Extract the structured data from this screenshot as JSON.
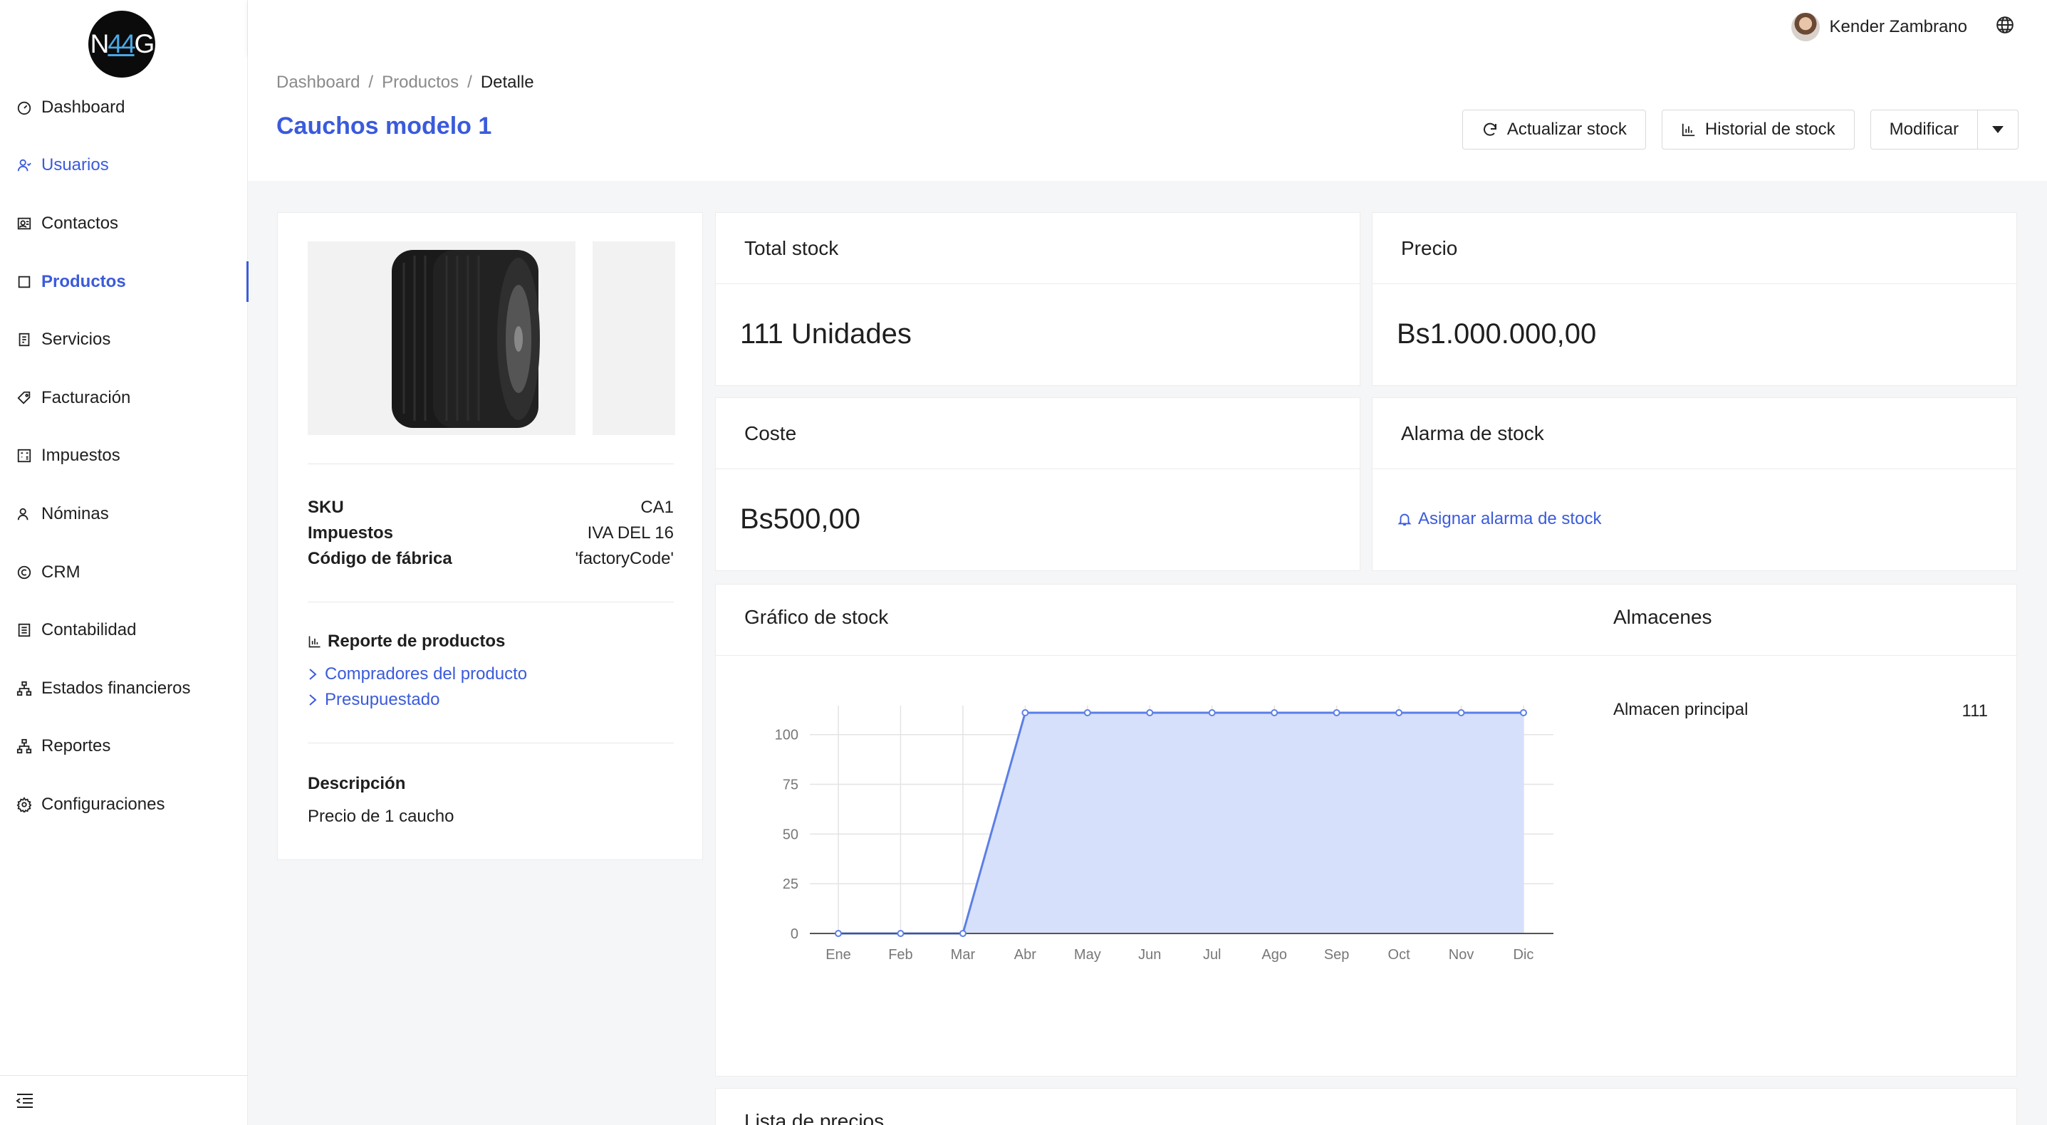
{
  "logo": {
    "left": "N",
    "mid": "44",
    "right": "G"
  },
  "sidebar": {
    "items": [
      {
        "label": "Dashboard",
        "icon": "dashboard-icon"
      },
      {
        "label": "Usuarios",
        "icon": "users-icon"
      },
      {
        "label": "Contactos",
        "icon": "contacts-icon"
      },
      {
        "label": "Productos",
        "icon": "box-icon"
      },
      {
        "label": "Servicios",
        "icon": "services-icon"
      },
      {
        "label": "Facturación",
        "icon": "tag-icon"
      },
      {
        "label": "Impuestos",
        "icon": "calculator-icon"
      },
      {
        "label": "Nóminas",
        "icon": "payroll-icon"
      },
      {
        "label": "CRM",
        "icon": "copyright-icon"
      },
      {
        "label": "Contabilidad",
        "icon": "ledger-icon"
      },
      {
        "label": "Estados financieros",
        "icon": "hierarchy-icon"
      },
      {
        "label": "Reportes",
        "icon": "reports-icon"
      },
      {
        "label": "Configuraciones",
        "icon": "gear-icon"
      }
    ],
    "active": "Productos"
  },
  "header": {
    "user_name": "Kender Zambrano"
  },
  "breadcrumb": {
    "items": [
      "Dashboard",
      "Productos"
    ],
    "current": "Detalle"
  },
  "page": {
    "title": "Cauchos modelo 1"
  },
  "actions": {
    "update_stock": "Actualizar stock",
    "stock_history": "Historial de stock",
    "modify": "Modificar"
  },
  "product": {
    "specs": [
      {
        "key": "SKU",
        "value": "CA1"
      },
      {
        "key": "Impuestos",
        "value": "IVA DEL 16"
      },
      {
        "key": "Código de fábrica",
        "value": "'factoryCode'"
      }
    ],
    "report_title": "Reporte de productos",
    "report_links": [
      "Compradores del producto",
      "Presupuestado"
    ],
    "description_title": "Descripción",
    "description": "Precio de 1 caucho"
  },
  "cards": {
    "total_stock": {
      "title": "Total stock",
      "value": "111 Unidades"
    },
    "price": {
      "title": "Precio",
      "value": "Bs1.000.000,00"
    },
    "cost": {
      "title": "Coste",
      "value": "Bs500,00"
    },
    "alarm": {
      "title": "Alarma de stock",
      "link": "Asignar alarma de stock"
    }
  },
  "stock_chart": {
    "title": "Gráfico de stock",
    "warehouses_title": "Almacenes",
    "warehouses": [
      {
        "name": "Almacen principal",
        "qty": "111"
      }
    ]
  },
  "price_list": {
    "title": "Lista de precios"
  },
  "colors": {
    "accent": "#3b5bdb",
    "chart_line": "#5b7fe6",
    "chart_fill": "#d7e0fa"
  },
  "chart_data": {
    "type": "area",
    "categories": [
      "Ene",
      "Feb",
      "Mar",
      "Abr",
      "May",
      "Jun",
      "Jul",
      "Ago",
      "Sep",
      "Oct",
      "Nov",
      "Dic"
    ],
    "values": [
      0,
      0,
      0,
      111,
      111,
      111,
      111,
      111,
      111,
      111,
      111,
      111
    ],
    "yticks": [
      0,
      25,
      50,
      75,
      100
    ],
    "ylim": [
      0,
      111
    ],
    "grid": true
  }
}
